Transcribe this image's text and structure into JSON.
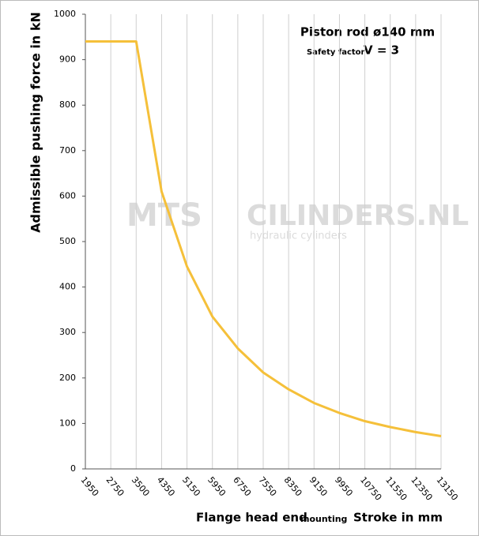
{
  "chart_data": {
    "type": "line",
    "annotations": {
      "rod": "Piston rod ø140 mm",
      "safety_label": "Safety factor",
      "safety_value": "V = 3"
    },
    "watermark": {
      "left": "MTS",
      "right": "CILINDERS.NL",
      "sub": "hydraulic  cylinders"
    },
    "x_label": {
      "main": "Flange head end",
      "small": "mounting",
      "right": "Stroke in mm"
    },
    "y_label": "Admissible pushing force in kN",
    "categories": [
      "1950",
      "2750",
      "3500",
      "4350",
      "5150",
      "5950",
      "6750",
      "7550",
      "8350",
      "9150",
      "9950",
      "10750",
      "11550",
      "12350",
      "13150"
    ],
    "series": [
      {
        "color": "#f5c03a",
        "values": [
          940,
          940,
          940,
          610,
          445,
          335,
          265,
          212,
          175,
          145,
          123,
          105,
          92,
          81,
          72
        ]
      }
    ],
    "ylim": [
      0,
      1000
    ],
    "yticks": [
      0,
      100,
      200,
      300,
      400,
      500,
      600,
      700,
      800,
      900,
      1000
    ],
    "grid_x": true
  }
}
